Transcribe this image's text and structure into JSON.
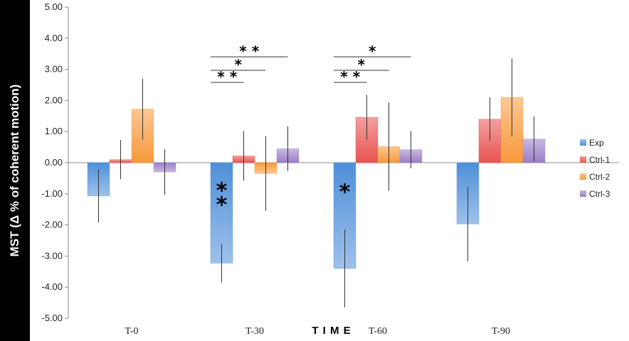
{
  "chart_data": {
    "type": "bar",
    "title": "",
    "ylabel": "MST (Δ % of coherent motion)",
    "xlabel": "T I M E",
    "ylim": [
      -5,
      5
    ],
    "ytick_step": 1,
    "ytick_labels": [
      "5.00",
      "4.00",
      "3.00",
      "2.00",
      "1.00",
      "0.00",
      "-1.00",
      "-2.00",
      "-3.00",
      "-4.00",
      "-5.00"
    ],
    "grid": false,
    "legend_position": "right",
    "categories": [
      "T-0",
      "T-30",
      "T-60",
      "T-90"
    ],
    "series": [
      {
        "name": "Exp",
        "color": "#4f8fd8",
        "values": [
          -1.07,
          -3.23,
          -3.4,
          -1.97
        ],
        "errors": [
          0.85,
          0.62,
          1.25,
          1.2
        ]
      },
      {
        "name": "Ctrl-1",
        "color": "#e8534f",
        "values": [
          0.1,
          0.22,
          1.46,
          1.4
        ],
        "errors": [
          0.63,
          0.8,
          0.72,
          0.7
        ]
      },
      {
        "name": "Ctrl-2",
        "color": "#f7993a",
        "values": [
          1.72,
          -0.35,
          0.52,
          2.1
        ],
        "errors": [
          0.98,
          1.2,
          1.42,
          1.25
        ]
      },
      {
        "name": "Ctrl-3",
        "color": "#9b7ec8",
        "values": [
          -0.3,
          0.45,
          0.42,
          0.76
        ],
        "errors": [
          0.73,
          0.72,
          0.6,
          0.72
        ]
      }
    ],
    "annotations": {
      "bar_marks": [
        {
          "category": 1,
          "series": 0,
          "text": "*\n*"
        },
        {
          "category": 2,
          "series": 0,
          "text": "*"
        }
      ],
      "brackets": [
        {
          "category": 1,
          "to_series": 1,
          "text": "* *"
        },
        {
          "category": 1,
          "to_series": 2,
          "text": "*"
        },
        {
          "category": 1,
          "to_series": 3,
          "text": "* *"
        },
        {
          "category": 2,
          "to_series": 1,
          "text": "* *"
        },
        {
          "category": 2,
          "to_series": 2,
          "text": "*"
        },
        {
          "category": 2,
          "to_series": 3,
          "text": "*"
        }
      ]
    }
  }
}
